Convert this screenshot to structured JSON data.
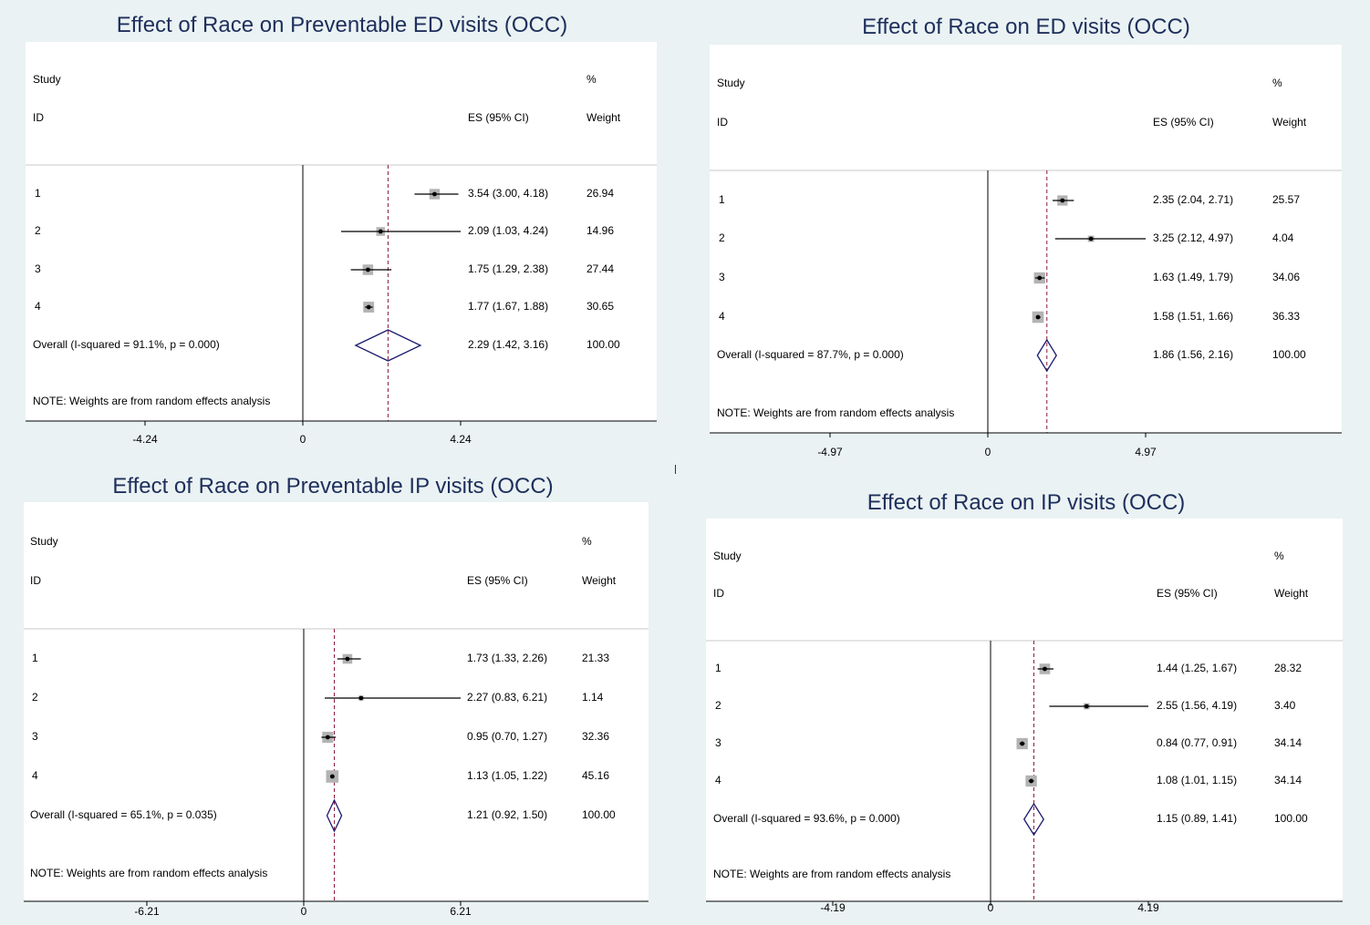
{
  "chart_data": [
    {
      "type": "forest",
      "title": "Effect of Race on Preventable ED visits (OCC)",
      "header": {
        "study": "Study",
        "id": "ID",
        "es": "ES (95% CI)",
        "pct": "%",
        "weight": "Weight"
      },
      "xticks": [
        -4.24,
        0,
        4.24
      ],
      "xtick_labels": [
        "-4.24",
        "0",
        "4.24"
      ],
      "xlim": [
        -7.4,
        9.4
      ],
      "studies": [
        {
          "id": "1",
          "es": 3.54,
          "lo": 3.0,
          "hi": 4.18,
          "es_label": "3.54 (3.00, 4.18)",
          "weight": 26.94,
          "weight_label": "26.94"
        },
        {
          "id": "2",
          "es": 2.09,
          "lo": 1.03,
          "hi": 4.24,
          "es_label": "2.09 (1.03, 4.24)",
          "weight": 14.96,
          "weight_label": "14.96"
        },
        {
          "id": "3",
          "es": 1.75,
          "lo": 1.29,
          "hi": 2.38,
          "es_label": "1.75 (1.29, 2.38)",
          "weight": 27.44,
          "weight_label": "27.44"
        },
        {
          "id": "4",
          "es": 1.77,
          "lo": 1.67,
          "hi": 1.88,
          "es_label": "1.77 (1.67, 1.88)",
          "weight": 30.65,
          "weight_label": "30.65"
        }
      ],
      "overall": {
        "label": "Overall  (I-squared = 91.1%, p = 0.000)",
        "es": 2.29,
        "lo": 1.42,
        "hi": 3.16,
        "es_label": "2.29 (1.42, 3.16)",
        "weight_label": "100.00"
      },
      "note": "NOTE: Weights are from random effects analysis"
    },
    {
      "type": "forest",
      "title": "Effect of Race on ED visits (OCC)",
      "header": {
        "study": "Study",
        "id": "ID",
        "es": "ES (95% CI)",
        "pct": "%",
        "weight": "Weight"
      },
      "xticks": [
        -4.97,
        0,
        4.97
      ],
      "xtick_labels": [
        "-4.97",
        "0",
        "4.97"
      ],
      "xlim": [
        -8.8,
        11.1
      ],
      "studies": [
        {
          "id": "1",
          "es": 2.35,
          "lo": 2.04,
          "hi": 2.71,
          "es_label": "2.35 (2.04, 2.71)",
          "weight": 25.57,
          "weight_label": "25.57"
        },
        {
          "id": "2",
          "es": 3.25,
          "lo": 2.12,
          "hi": 4.97,
          "es_label": "3.25 (2.12, 4.97)",
          "weight": 4.04,
          "weight_label": "4.04"
        },
        {
          "id": "3",
          "es": 1.63,
          "lo": 1.49,
          "hi": 1.79,
          "es_label": "1.63 (1.49, 1.79)",
          "weight": 34.06,
          "weight_label": "34.06"
        },
        {
          "id": "4",
          "es": 1.58,
          "lo": 1.51,
          "hi": 1.66,
          "es_label": "1.58 (1.51, 1.66)",
          "weight": 36.33,
          "weight_label": "36.33"
        }
      ],
      "overall": {
        "label": "Overall  (I-squared = 87.7%, p = 0.000)",
        "es": 1.86,
        "lo": 1.56,
        "hi": 2.16,
        "es_label": "1.86 (1.56, 2.16)",
        "weight_label": "100.00"
      },
      "note": "NOTE: Weights are from random effects analysis"
    },
    {
      "type": "forest",
      "title": "Effect of Race on Preventable IP visits (OCC)",
      "header": {
        "study": "Study",
        "id": "ID",
        "es": "ES (95% CI)",
        "pct": "%",
        "weight": "Weight"
      },
      "xticks": [
        -6.21,
        0,
        6.21
      ],
      "xtick_labels": [
        "-6.21",
        "0",
        "6.21"
      ],
      "xlim": [
        -11.0,
        13.4
      ],
      "studies": [
        {
          "id": "1",
          "es": 1.73,
          "lo": 1.33,
          "hi": 2.26,
          "es_label": "1.73 (1.33, 2.26)",
          "weight": 21.33,
          "weight_label": "21.33"
        },
        {
          "id": "2",
          "es": 2.27,
          "lo": 0.83,
          "hi": 6.21,
          "es_label": "2.27 (0.83, 6.21)",
          "weight": 1.14,
          "weight_label": "1.14"
        },
        {
          "id": "3",
          "es": 0.95,
          "lo": 0.7,
          "hi": 1.27,
          "es_label": "0.95 (0.70, 1.27)",
          "weight": 32.36,
          "weight_label": "32.36"
        },
        {
          "id": "4",
          "es": 1.13,
          "lo": 1.05,
          "hi": 1.22,
          "es_label": "1.13 (1.05, 1.22)",
          "weight": 45.16,
          "weight_label": "45.16"
        }
      ],
      "overall": {
        "label": "Overall  (I-squared = 65.1%, p = 0.035)",
        "es": 1.21,
        "lo": 0.92,
        "hi": 1.5,
        "es_label": "1.21 (0.92, 1.50)",
        "weight_label": "100.00"
      },
      "note": "NOTE: Weights are from random effects analysis"
    },
    {
      "type": "forest",
      "title": "Effect of Race on  IP visits (OCC)",
      "header": {
        "study": "Study",
        "id": "ID",
        "es": "ES (95% CI)",
        "pct": "%",
        "weight": "Weight"
      },
      "xticks": [
        -4.19,
        0,
        4.19
      ],
      "xtick_labels": [
        "-4.19",
        "0",
        "4.19"
      ],
      "xlim": [
        -7.4,
        9.3
      ],
      "studies": [
        {
          "id": "1",
          "es": 1.44,
          "lo": 1.25,
          "hi": 1.67,
          "es_label": "1.44 (1.25, 1.67)",
          "weight": 28.32,
          "weight_label": "28.32"
        },
        {
          "id": "2",
          "es": 2.55,
          "lo": 1.56,
          "hi": 4.19,
          "es_label": "2.55 (1.56, 4.19)",
          "weight": 3.4,
          "weight_label": "3.40"
        },
        {
          "id": "3",
          "es": 0.84,
          "lo": 0.77,
          "hi": 0.91,
          "es_label": "0.84 (0.77, 0.91)",
          "weight": 34.14,
          "weight_label": "34.14"
        },
        {
          "id": "4",
          "es": 1.08,
          "lo": 1.01,
          "hi": 1.15,
          "es_label": "1.08 (1.01, 1.15)",
          "weight": 34.14,
          "weight_label": "34.14"
        }
      ],
      "overall": {
        "label": "Overall  (I-squared = 93.6%, p = 0.000)",
        "es": 1.15,
        "lo": 0.89,
        "hi": 1.41,
        "es_label": "1.15 (0.89, 1.41)",
        "weight_label": "100.00"
      },
      "note": "NOTE: Weights are from random effects analysis"
    }
  ],
  "colors": {
    "title": "#1e2f5c",
    "diamond": "#1a1a6e",
    "box": "#b3b3b3",
    "refline": "#8b1a3a"
  }
}
